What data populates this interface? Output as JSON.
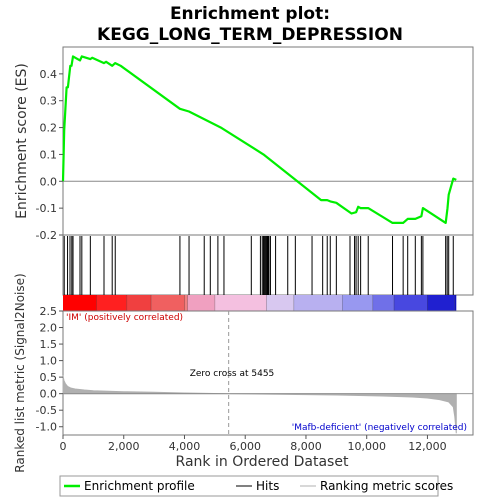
{
  "chart_data": {
    "type": "line",
    "title_line1": "Enrichment plot:",
    "title_line2": "KEGG_LONG_TERM_DEPRESSION",
    "es_panel": {
      "ylabel": "Enrichment score (ES)",
      "ylim": [
        -0.2,
        0.5
      ],
      "yticks": [
        "0.4",
        "0.3",
        "0.2",
        "0.1",
        "0.0",
        "-0.1",
        "-0.2"
      ],
      "ytick_values": [
        0.4,
        0.3,
        0.2,
        0.1,
        0.0,
        -0.1,
        -0.2
      ],
      "curve_color": "#00ee00",
      "x": [
        0,
        40,
        80,
        120,
        160,
        200,
        240,
        280,
        330,
        560,
        620,
        900,
        960,
        1350,
        1420,
        1620,
        1720,
        1900,
        3850,
        4150,
        5200,
        6600,
        8500,
        8700,
        8800,
        9000,
        9500,
        9650,
        9720,
        9800,
        10050,
        10850,
        11200,
        11350,
        11600,
        11800,
        11850,
        12600,
        12660,
        12700,
        12850,
        12950
      ],
      "y": [
        0.0,
        0.19,
        0.27,
        0.35,
        0.35,
        0.39,
        0.43,
        0.43,
        0.465,
        0.45,
        0.465,
        0.455,
        0.46,
        0.44,
        0.445,
        0.43,
        0.44,
        0.43,
        0.27,
        0.26,
        0.2,
        0.1,
        -0.07,
        -0.07,
        -0.075,
        -0.08,
        -0.12,
        -0.115,
        -0.095,
        -0.1,
        -0.1,
        -0.155,
        -0.155,
        -0.14,
        -0.14,
        -0.13,
        -0.1,
        -0.155,
        -0.1,
        -0.05,
        0.01,
        0.005
      ]
    },
    "hits": [
      40,
      150,
      230,
      290,
      330,
      560,
      620,
      900,
      1350,
      1620,
      1720,
      3850,
      4150,
      4650,
      4850,
      5100,
      5300,
      6200,
      6500,
      6560,
      6600,
      6630,
      6660,
      6690,
      6720,
      6750,
      6780,
      6830,
      7000,
      7400,
      7650,
      8200,
      8550,
      8700,
      8800,
      9000,
      9450,
      9600,
      9650,
      9720,
      9800,
      10050,
      10850,
      11200,
      11350,
      11600,
      11800,
      11850,
      12600,
      12650,
      12700,
      12850
    ],
    "heatmap": {
      "colors": [
        "#ff0000",
        "#ff2020",
        "#f04040",
        "#f06060",
        "#f08080",
        "#f0a0c0",
        "#f4c0e0",
        "#d8c8f0",
        "#b8b0f0",
        "#9898f0",
        "#7070e8",
        "#4848e0",
        "#2020d0",
        "#1010c0"
      ],
      "positions": [
        0,
        1100,
        2100,
        2900,
        4000,
        4100,
        5000,
        6700,
        7600,
        9200,
        10200,
        10900,
        12000,
        12900
      ],
      "label_pos": "'IM' (positively correlated)",
      "label_neg": "'Mafb-deficient' (negatively correlated)",
      "label_pos_color": "#cc0000",
      "label_neg_color": "#0000cc"
    },
    "metric_panel": {
      "ylabel": "Ranked list metric (Signal2Noise)",
      "ylim": [
        -1.25,
        2.5
      ],
      "yticks": [
        "2.5",
        "2.0",
        "1.5",
        "1.0",
        "0.5",
        "0.0",
        "-0.5",
        "-1.0"
      ],
      "ytick_values": [
        2.5,
        2.0,
        1.5,
        1.0,
        0.5,
        0.0,
        -0.5,
        -1.0
      ],
      "fill_color": "#b0b0b0",
      "x": [
        0,
        30,
        80,
        150,
        250,
        400,
        700,
        1000,
        2000,
        3000,
        4000,
        5455,
        7000,
        9000,
        10500,
        11500,
        12000,
        12400,
        12700,
        12850,
        12900,
        12950
      ],
      "y": [
        0.55,
        0.4,
        0.3,
        0.22,
        0.17,
        0.14,
        0.11,
        0.09,
        0.06,
        0.04,
        0.02,
        0.0,
        -0.02,
        -0.04,
        -0.07,
        -0.1,
        -0.13,
        -0.18,
        -0.25,
        -0.4,
        -0.7,
        -1.2
      ],
      "zero_cross_label": "Zero cross at 5455",
      "zero_cross_x": 5455
    },
    "xaxis": {
      "label": "Rank in Ordered Dataset",
      "ticks": [
        "0",
        "2,000",
        "4,000",
        "6,000",
        "8,000",
        "10,000",
        "12,000"
      ],
      "tick_values": [
        0,
        2000,
        4000,
        6000,
        8000,
        10000,
        12000
      ],
      "xlim": [
        0,
        13500
      ]
    },
    "legend": [
      {
        "name": "Enrichment profile",
        "color": "#00ee00"
      },
      {
        "name": "Hits",
        "color": "#000000"
      },
      {
        "name": "Ranking metric scores",
        "color": "#b0b0b0"
      }
    ]
  }
}
